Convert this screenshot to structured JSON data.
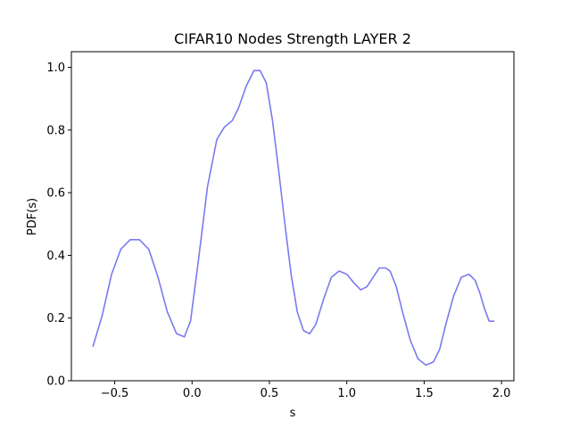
{
  "chart_data": {
    "type": "line",
    "title": "CIFAR10 Nodes Strength LAYER 2",
    "xlabel": "s",
    "ylabel": "PDF(s)",
    "xlim": [
      -0.78,
      2.08
    ],
    "ylim": [
      0,
      1.05
    ],
    "grid": false,
    "xticks": [
      {
        "value": -0.5,
        "label": "−0.5"
      },
      {
        "value": 0.0,
        "label": "0.0"
      },
      {
        "value": 0.5,
        "label": "0.5"
      },
      {
        "value": 1.0,
        "label": "1.0"
      },
      {
        "value": 1.5,
        "label": "1.5"
      },
      {
        "value": 2.0,
        "label": "2.0"
      }
    ],
    "yticks": [
      {
        "value": 0.0,
        "label": "0.0"
      },
      {
        "value": 0.2,
        "label": "0.2"
      },
      {
        "value": 0.4,
        "label": "0.4"
      },
      {
        "value": 0.6,
        "label": "0.6"
      },
      {
        "value": 0.8,
        "label": "0.8"
      },
      {
        "value": 1.0,
        "label": "1.0"
      }
    ],
    "series": [
      {
        "color": "#7a7af0",
        "x": [
          -0.64,
          -0.58,
          -0.52,
          -0.46,
          -0.4,
          -0.34,
          -0.28,
          -0.22,
          -0.16,
          -0.1,
          -0.05,
          -0.01,
          0.04,
          0.1,
          0.16,
          0.21,
          0.26,
          0.3,
          0.35,
          0.4,
          0.44,
          0.48,
          0.52,
          0.56,
          0.6,
          0.64,
          0.68,
          0.72,
          0.76,
          0.8,
          0.85,
          0.9,
          0.95,
          1.0,
          1.05,
          1.09,
          1.13,
          1.17,
          1.21,
          1.25,
          1.28,
          1.32,
          1.36,
          1.41,
          1.46,
          1.51,
          1.56,
          1.6,
          1.64,
          1.69,
          1.74,
          1.79,
          1.83,
          1.86,
          1.89,
          1.92,
          1.95
        ],
        "y": [
          0.11,
          0.21,
          0.34,
          0.42,
          0.45,
          0.45,
          0.42,
          0.33,
          0.22,
          0.15,
          0.14,
          0.19,
          0.38,
          0.62,
          0.77,
          0.81,
          0.83,
          0.87,
          0.94,
          0.99,
          0.99,
          0.95,
          0.83,
          0.67,
          0.5,
          0.34,
          0.22,
          0.16,
          0.15,
          0.18,
          0.26,
          0.33,
          0.35,
          0.34,
          0.31,
          0.29,
          0.3,
          0.33,
          0.36,
          0.36,
          0.35,
          0.3,
          0.22,
          0.13,
          0.07,
          0.05,
          0.06,
          0.1,
          0.18,
          0.27,
          0.33,
          0.34,
          0.32,
          0.28,
          0.23,
          0.19,
          0.19
        ]
      }
    ]
  }
}
